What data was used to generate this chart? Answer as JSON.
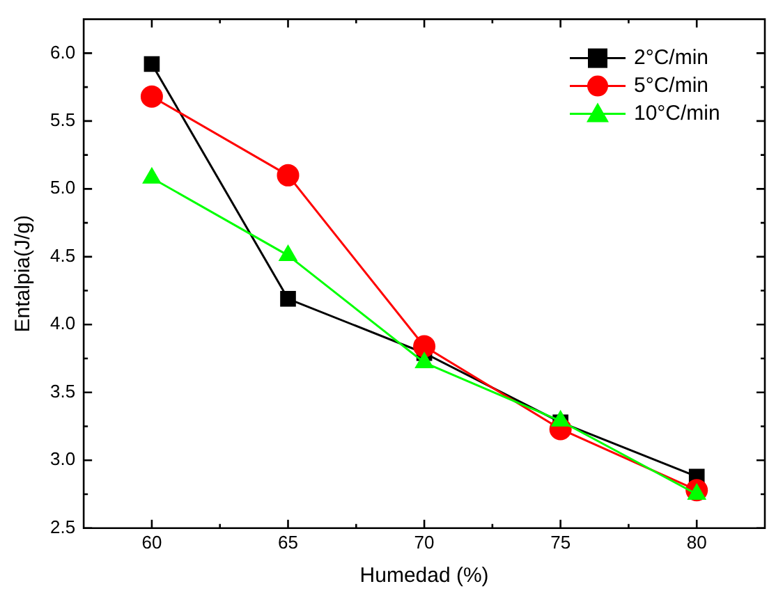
{
  "chart_data": {
    "type": "line",
    "xlabel": "Humedad (%)",
    "ylabel": "Entalpia(J/g)",
    "x": [
      60,
      65,
      70,
      75,
      80
    ],
    "series": [
      {
        "name": "2°C/min",
        "color": "#000000",
        "marker": "square",
        "values": [
          5.92,
          4.19,
          3.79,
          3.28,
          2.88
        ]
      },
      {
        "name": "5°C/min",
        "color": "#ff0000",
        "marker": "circle",
        "values": [
          5.68,
          5.1,
          3.84,
          3.23,
          2.78
        ]
      },
      {
        "name": "10°C/min",
        "color": "#00ff00",
        "marker": "triangle",
        "values": [
          5.08,
          4.51,
          3.72,
          3.29,
          2.75
        ]
      }
    ],
    "xlim": [
      57.5,
      82.5
    ],
    "xticks": [
      60,
      {
        "value": 62.5,
        "label": null
      },
      65,
      {
        "value": 67.5,
        "label": null
      },
      70,
      {
        "value": 72.5,
        "label": null
      },
      75,
      {
        "value": 77.5,
        "label": null
      },
      80
    ],
    "ylim": [
      2.5,
      6.25
    ],
    "yticks": [
      2.5,
      {
        "value": 2.75,
        "label": null
      },
      {
        "value": 3,
        "label": "3.0"
      },
      {
        "value": 3.25,
        "label": null
      },
      3.5,
      {
        "value": 3.75,
        "label": null
      },
      {
        "value": 4,
        "label": "4.0"
      },
      {
        "value": 4.25,
        "label": null
      },
      4.5,
      {
        "value": 4.75,
        "label": null
      },
      {
        "value": 5,
        "label": "5.0"
      },
      {
        "value": 5.25,
        "label": null
      },
      5.5,
      {
        "value": 5.75,
        "label": null
      },
      {
        "value": 6,
        "label": "6.0"
      }
    ],
    "grid": false,
    "legend": "top right",
    "line_style": "solid"
  }
}
